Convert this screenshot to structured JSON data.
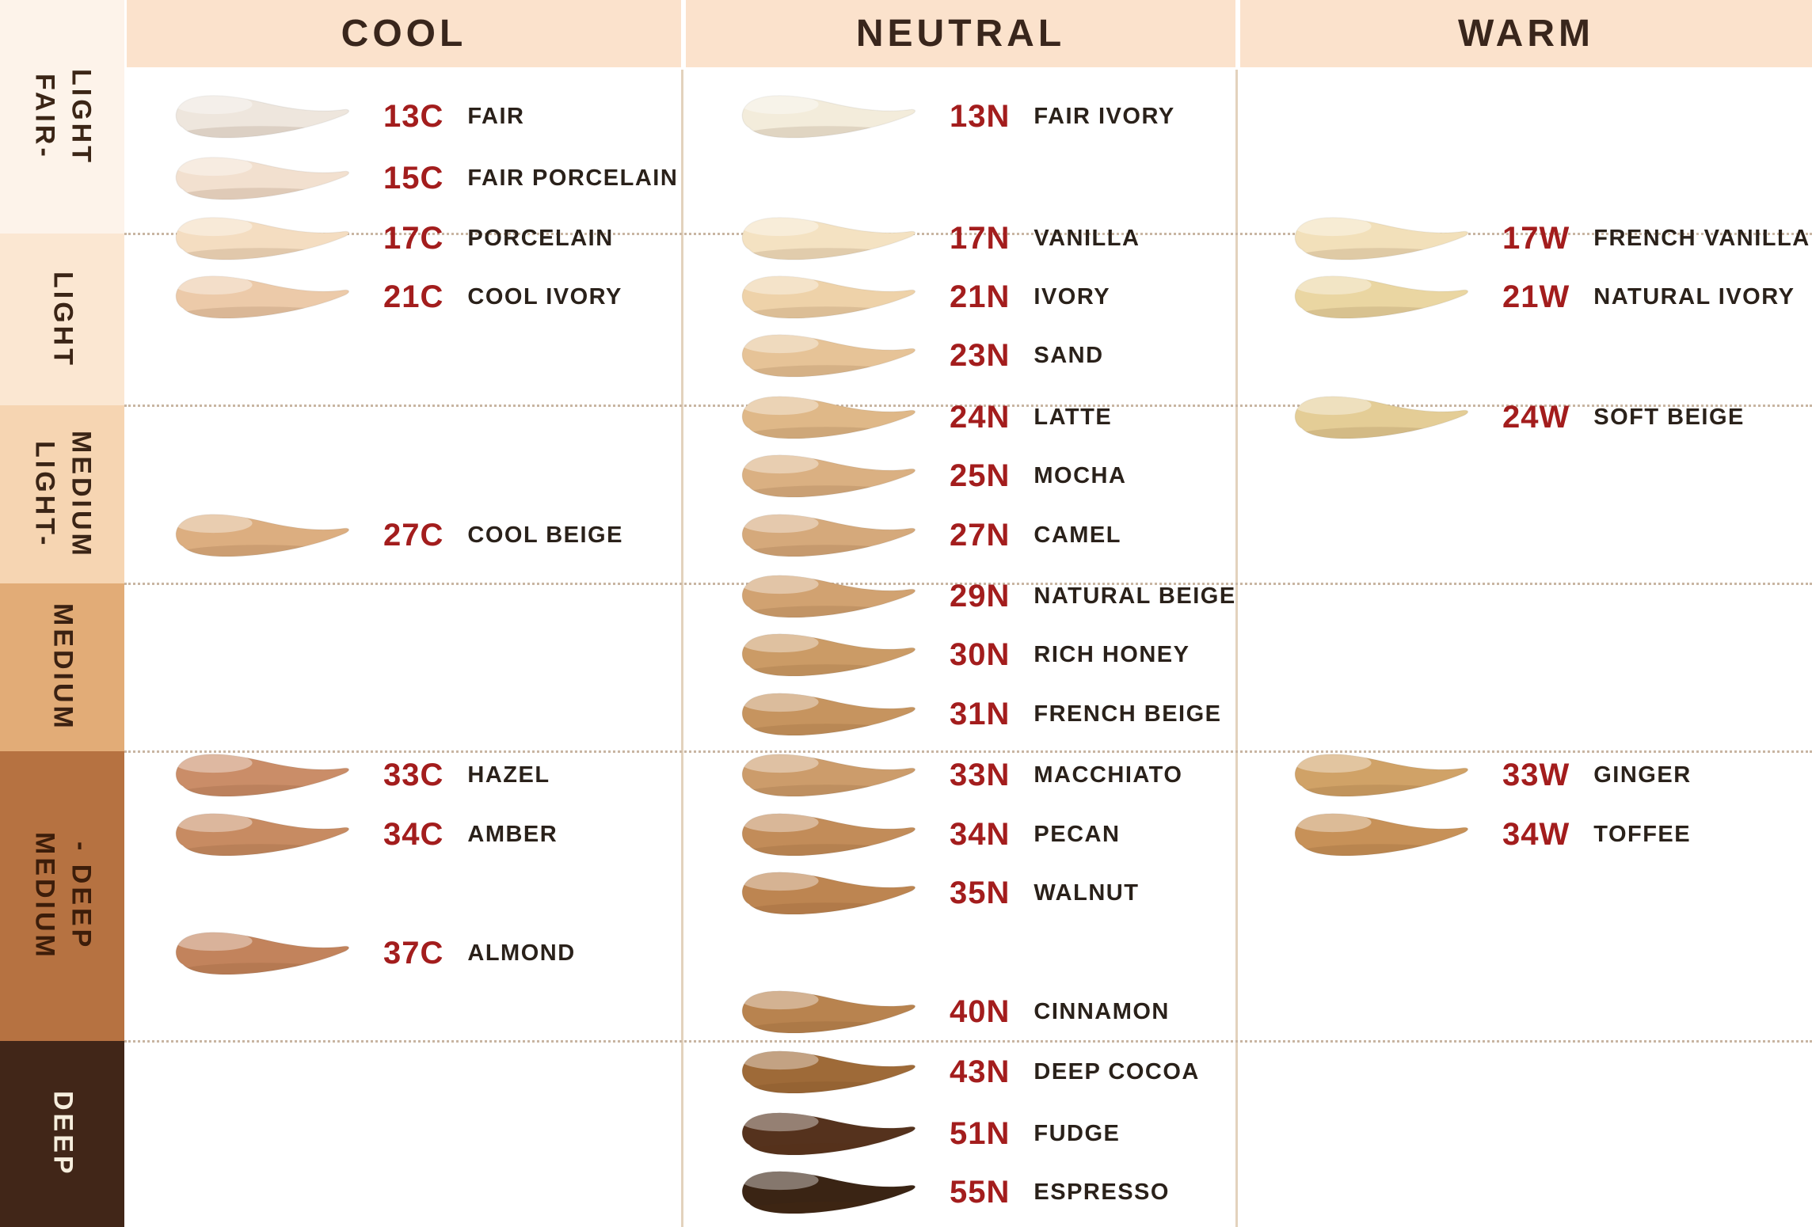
{
  "palette": {
    "header_bg": "#fbe2cc",
    "header_text": "#39261c",
    "code_color": "#a31d1d",
    "name_color": "#2a211a",
    "column_line": "#e3d2bd",
    "dotted_line": "#c8b5a2"
  },
  "header": {
    "columns": [
      {
        "label": "COOL"
      },
      {
        "label": "NEUTRAL"
      },
      {
        "label": "WARM"
      }
    ]
  },
  "depth_bands": [
    {
      "label": "FAIR-\nLIGHT",
      "bg": "#fdf3ea",
      "text_color": "#3b2516"
    },
    {
      "label": "LIGHT",
      "bg": "#fbe7d2",
      "text_color": "#3b2516"
    },
    {
      "label": "LIGHT-\nMEDIUM",
      "bg": "#f6d5b2",
      "text_color": "#3b2516"
    },
    {
      "label": "MEDIUM",
      "bg": "#e2ac77",
      "text_color": "#3b2112"
    },
    {
      "label": "MEDIUM\n- DEEP",
      "bg": "#b67241",
      "text_color": "#3c1d0a"
    },
    {
      "label": "DEEP",
      "bg": "#412618",
      "text_color": "#f6eedd"
    }
  ],
  "columns": [
    {
      "key": "cool",
      "header": "COOL",
      "shades": [
        {
          "code": "13C",
          "name": "FAIR",
          "color": "#eee6dd"
        },
        {
          "code": "15C",
          "name": "FAIR PORCELAIN",
          "color": "#f2e0cf"
        },
        {
          "code": "17C",
          "name": "PORCELAIN",
          "color": "#f4ddc1"
        },
        {
          "code": "21C",
          "name": "COOL IVORY",
          "color": "#eccaa9"
        },
        {
          "code": "27C",
          "name": "COOL BEIGE",
          "color": "#dcae80"
        },
        {
          "code": "33C",
          "name": "HAZEL",
          "color": "#ca8d68"
        },
        {
          "code": "34C",
          "name": "AMBER",
          "color": "#c78b62"
        },
        {
          "code": "37C",
          "name": "ALMOND",
          "color": "#c2835c"
        }
      ]
    },
    {
      "key": "neutral",
      "header": "NEUTRAL",
      "shades": [
        {
          "code": "13N",
          "name": "FAIR IVORY",
          "color": "#f3ecdb"
        },
        {
          "code": "17N",
          "name": "VANILLA",
          "color": "#f4e2c2"
        },
        {
          "code": "21N",
          "name": "IVORY",
          "color": "#eed2a9"
        },
        {
          "code": "23N",
          "name": "SAND",
          "color": "#e6c397"
        },
        {
          "code": "24N",
          "name": "LATTE",
          "color": "#dfb888"
        },
        {
          "code": "25N",
          "name": "MOCHA",
          "color": "#dab082"
        },
        {
          "code": "27N",
          "name": "CAMEL",
          "color": "#d5a97b"
        },
        {
          "code": "29N",
          "name": "NATURAL BEIGE",
          "color": "#d1a271"
        },
        {
          "code": "30N",
          "name": "RICH HONEY",
          "color": "#cb9b66"
        },
        {
          "code": "31N",
          "name": "FRENCH BEIGE",
          "color": "#c6945f"
        },
        {
          "code": "33N",
          "name": "MACCHIATO",
          "color": "#cc9c6b"
        },
        {
          "code": "34N",
          "name": "PECAN",
          "color": "#c28c59"
        },
        {
          "code": "35N",
          "name": "WALNUT",
          "color": "#bd8551"
        },
        {
          "code": "40N",
          "name": "CINNAMON",
          "color": "#b8834f"
        },
        {
          "code": "43N",
          "name": "DEEP COCOA",
          "color": "#9e6a38"
        },
        {
          "code": "51N",
          "name": "FUDGE",
          "color": "#55321d"
        },
        {
          "code": "55N",
          "name": "ESPRESSO",
          "color": "#3a2414"
        }
      ]
    },
    {
      "key": "warm",
      "header": "WARM",
      "shades": [
        {
          "code": "17W",
          "name": "FRENCH VANILLA",
          "color": "#f2e0ba"
        },
        {
          "code": "21W",
          "name": "NATURAL IVORY",
          "color": "#ead6a2"
        },
        {
          "code": "24W",
          "name": "SOFT BEIGE",
          "color": "#e4cd96"
        },
        {
          "code": "33W",
          "name": "GINGER",
          "color": "#d0a267"
        },
        {
          "code": "34W",
          "name": "TOFFEE",
          "color": "#c79158"
        }
      ]
    }
  ],
  "chart_data": {
    "type": "table",
    "title": "Foundation shade chart by undertone (Cool / Neutral / Warm) and depth",
    "columns": [
      "COOL",
      "NEUTRAL",
      "WARM"
    ],
    "row_groups": [
      "FAIR-LIGHT",
      "LIGHT",
      "LIGHT-MEDIUM",
      "MEDIUM",
      "MEDIUM-DEEP",
      "DEEP"
    ],
    "rows": [
      {
        "depth": "FAIR-LIGHT",
        "COOL": [
          "13C FAIR",
          "15C FAIR PORCELAIN"
        ],
        "NEUTRAL": [
          "13N FAIR IVORY"
        ],
        "WARM": []
      },
      {
        "depth": "LIGHT",
        "COOL": [
          "17C PORCELAIN",
          "21C COOL IVORY"
        ],
        "NEUTRAL": [
          "17N VANILLA",
          "21N IVORY",
          "23N SAND"
        ],
        "WARM": [
          "17W FRENCH VANILLA",
          "21W NATURAL IVORY"
        ]
      },
      {
        "depth": "LIGHT-MEDIUM",
        "COOL": [
          "27C COOL BEIGE"
        ],
        "NEUTRAL": [
          "24N LATTE",
          "25N MOCHA",
          "27N CAMEL"
        ],
        "WARM": [
          "24W SOFT BEIGE"
        ]
      },
      {
        "depth": "MEDIUM",
        "COOL": [],
        "NEUTRAL": [
          "29N NATURAL BEIGE",
          "30N RICH HONEY",
          "31N FRENCH BEIGE"
        ],
        "WARM": []
      },
      {
        "depth": "MEDIUM-DEEP",
        "COOL": [
          "33C HAZEL",
          "34C AMBER",
          "37C ALMOND"
        ],
        "NEUTRAL": [
          "33N MACCHIATO",
          "34N PECAN",
          "35N WALNUT",
          "40N CINNAMON"
        ],
        "WARM": [
          "33W GINGER",
          "34W TOFFEE"
        ]
      },
      {
        "depth": "DEEP",
        "COOL": [],
        "NEUTRAL": [
          "43N DEEP COCOA",
          "51N FUDGE",
          "55N ESPRESSO"
        ],
        "WARM": []
      }
    ]
  }
}
